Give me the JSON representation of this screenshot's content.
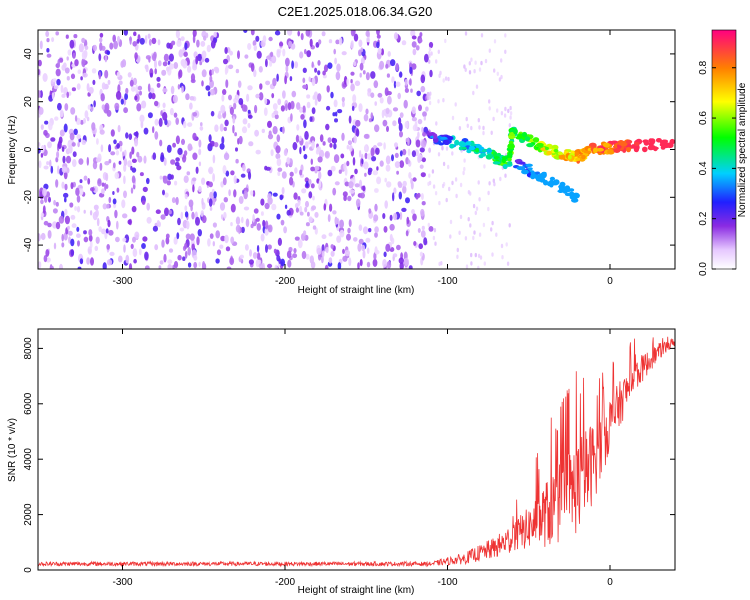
{
  "title": "C2E1.2025.018.06.34.G20",
  "chart_data": [
    {
      "type": "heatmap",
      "title": "C2E1.2025.018.06.34.G20",
      "xlabel": "Height of straight line (km)",
      "ylabel": "Frequency (Hz)",
      "xlim": [
        -352,
        40
      ],
      "ylim": [
        -50,
        50
      ],
      "xticks": [
        -300,
        -200,
        -100,
        0
      ],
      "yticks": [
        -40,
        -20,
        0,
        20,
        40
      ],
      "colorbar": {
        "label": "Normalized spectral amplitude",
        "range": [
          0.0,
          0.95
        ],
        "ticks": [
          0.0,
          0.2,
          0.4,
          0.6,
          0.8
        ]
      },
      "features": [
        {
          "name": "noise",
          "x_range": [
            -352,
            -110
          ],
          "y_range": [
            -50,
            50
          ],
          "amplitude": "0.05-0.25"
        },
        {
          "name": "signal-main",
          "points": [
            [
              -110,
              5
            ],
            [
              -90,
              2
            ],
            [
              -75,
              -2
            ],
            [
              -62,
              -6
            ],
            [
              -60,
              8
            ],
            [
              -45,
              2
            ],
            [
              -30,
              -2
            ],
            [
              -20,
              -3
            ],
            [
              -10,
              0
            ],
            [
              0,
              1
            ],
            [
              20,
              2
            ],
            [
              40,
              2
            ]
          ],
          "peak_amplitude": 0.9
        },
        {
          "name": "signal-branch",
          "points": [
            [
              -60,
              -5
            ],
            [
              -40,
              -12
            ],
            [
              -20,
              -20
            ]
          ],
          "peak_amplitude": 0.35
        }
      ]
    },
    {
      "type": "line",
      "xlabel": "Height of straight line (km)",
      "ylabel": "SNR (10 * v/v)",
      "xlim": [
        -352,
        40
      ],
      "ylim": [
        0,
        8700
      ],
      "xticks": [
        -300,
        -200,
        -100,
        0
      ],
      "yticks": [
        0,
        2000,
        4000,
        6000,
        8000
      ],
      "series": [
        {
          "name": "SNR",
          "color": "#ee3333",
          "envelope": [
            {
              "x": -352,
              "base": 200,
              "spread": 150
            },
            {
              "x": -110,
              "base": 200,
              "spread": 150
            },
            {
              "x": -90,
              "base": 350,
              "spread": 400
            },
            {
              "x": -70,
              "base": 700,
              "spread": 800
            },
            {
              "x": -50,
              "base": 1300,
              "spread": 1500
            },
            {
              "x": -35,
              "base": 1800,
              "spread": 2800
            },
            {
              "x": -20,
              "base": 2500,
              "spread": 3500
            },
            {
              "x": -10,
              "base": 3500,
              "spread": 3000
            },
            {
              "x": 0,
              "base": 5000,
              "spread": 2000
            },
            {
              "x": 15,
              "base": 6800,
              "spread": 1200
            },
            {
              "x": 30,
              "base": 7800,
              "spread": 600
            },
            {
              "x": 40,
              "base": 8200,
              "spread": 300
            }
          ]
        }
      ]
    }
  ]
}
